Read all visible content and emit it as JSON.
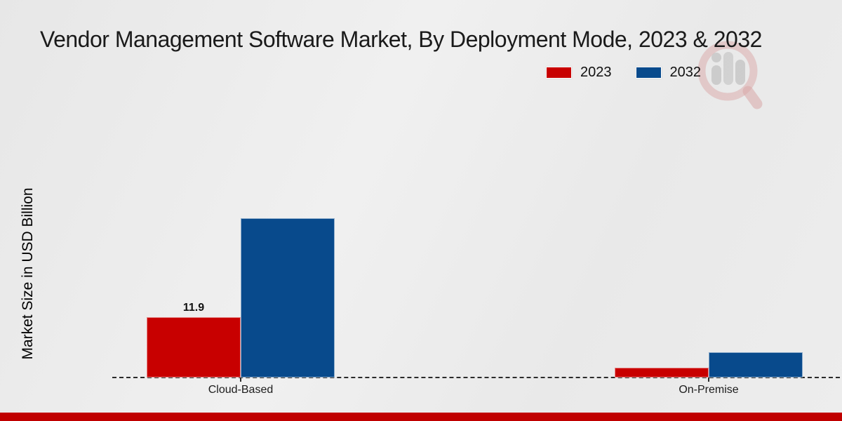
{
  "title": "Vendor Management Software Market, By Deployment Mode, 2023 & 2032",
  "y_axis_label": "Market Size in USD Billion",
  "footer_bar_color": "#c00000",
  "watermark_icon": "magnifier-bar-chart-logo",
  "colors": {
    "series_2023": "#c80000",
    "series_2032": "#084a8c",
    "baseline": "#2b2b2b"
  },
  "chart_data": {
    "type": "bar",
    "title": "Vendor Management Software Market, By Deployment Mode, 2023 & 2032",
    "categories": [
      "Cloud-Based",
      "On-Premise"
    ],
    "series": [
      {
        "name": "2023",
        "color": "#c80000",
        "values": [
          11.9,
          1.9
        ],
        "data_labels": [
          "11.9",
          ""
        ]
      },
      {
        "name": "2032",
        "color": "#084a8c",
        "values": [
          31.4,
          5.0
        ],
        "data_labels": [
          "",
          ""
        ]
      }
    ],
    "xlabel": "",
    "ylabel": "Market Size in USD Billion",
    "ylim": [
      0,
      33
    ],
    "grid": false,
    "legend_position": "top-right",
    "baseline_style": "dashed",
    "only_labeled_value": "11.9"
  }
}
